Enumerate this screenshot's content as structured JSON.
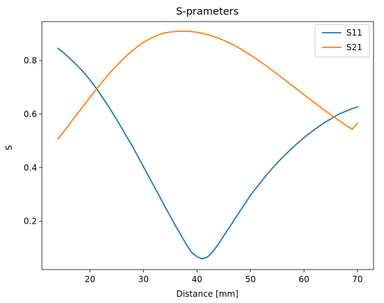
{
  "chart_data": {
    "type": "line",
    "title": "S-prameters",
    "xlabel": "Distance [mm]",
    "ylabel": "S",
    "xlim": [
      11,
      73
    ],
    "ylim": [
      0.02,
      0.945
    ],
    "xticks": [
      20,
      30,
      40,
      50,
      60,
      70
    ],
    "yticks": [
      0.2,
      0.4,
      0.6,
      0.8
    ],
    "grid": false,
    "legend_position": "top-right",
    "series": [
      {
        "name": "S11",
        "color": "#1f77b4",
        "x": [
          14,
          15,
          16,
          17,
          18,
          19,
          20,
          21,
          22,
          23,
          24,
          25,
          26,
          27,
          28,
          29,
          30,
          31,
          32,
          33,
          34,
          35,
          36,
          37,
          38,
          39,
          40,
          41,
          42,
          43,
          44,
          45,
          46,
          47,
          48,
          49,
          50,
          51,
          52,
          53,
          54,
          55,
          56,
          57,
          58,
          59,
          60,
          61,
          62,
          63,
          64,
          65,
          66,
          67,
          68,
          69,
          70
        ],
        "values": [
          0.845,
          0.83,
          0.812,
          0.793,
          0.773,
          0.751,
          0.727,
          0.701,
          0.672,
          0.642,
          0.611,
          0.579,
          0.545,
          0.511,
          0.477,
          0.44,
          0.403,
          0.366,
          0.329,
          0.293,
          0.255,
          0.219,
          0.183,
          0.148,
          0.114,
          0.084,
          0.068,
          0.06,
          0.067,
          0.088,
          0.115,
          0.146,
          0.176,
          0.207,
          0.237,
          0.267,
          0.297,
          0.323,
          0.348,
          0.373,
          0.396,
          0.418,
          0.439,
          0.458,
          0.477,
          0.495,
          0.512,
          0.528,
          0.543,
          0.557,
          0.57,
          0.582,
          0.594,
          0.604,
          0.612,
          0.62,
          0.627
        ]
      },
      {
        "name": "S21",
        "color": "#ff7f0e",
        "x": [
          14,
          15,
          16,
          17,
          18,
          19,
          20,
          21,
          22,
          23,
          24,
          25,
          26,
          27,
          28,
          29,
          30,
          31,
          32,
          33,
          34,
          35,
          36,
          37,
          38,
          39,
          40,
          41,
          42,
          43,
          44,
          45,
          46,
          47,
          48,
          49,
          50,
          51,
          52,
          53,
          54,
          55,
          56,
          57,
          58,
          59,
          60,
          61,
          62,
          63,
          64,
          65,
          66,
          67,
          68,
          69,
          70
        ],
        "values": [
          0.507,
          0.532,
          0.558,
          0.585,
          0.611,
          0.637,
          0.662,
          0.688,
          0.713,
          0.737,
          0.76,
          0.781,
          0.802,
          0.821,
          0.838,
          0.854,
          0.868,
          0.879,
          0.889,
          0.897,
          0.903,
          0.906,
          0.908,
          0.909,
          0.909,
          0.908,
          0.905,
          0.901,
          0.896,
          0.89,
          0.883,
          0.875,
          0.866,
          0.856,
          0.845,
          0.833,
          0.82,
          0.807,
          0.793,
          0.779,
          0.764,
          0.749,
          0.734,
          0.719,
          0.703,
          0.688,
          0.672,
          0.657,
          0.642,
          0.627,
          0.612,
          0.598,
          0.584,
          0.57,
          0.556,
          0.543,
          0.566
        ]
      }
    ]
  }
}
